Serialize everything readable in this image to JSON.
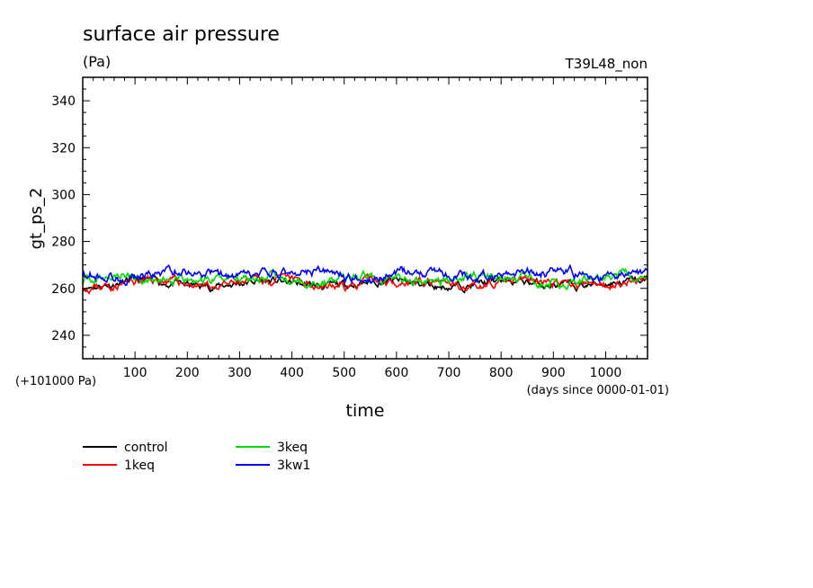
{
  "chart_data": {
    "type": "line",
    "title": "surface air pressure",
    "units": "(Pa)",
    "subtitle_right": "T39L48_non",
    "ylabel": "gt_ps_2",
    "xlabel": "time",
    "offset_label": "(+101000 Pa)",
    "x_units_label": "(days since 0000-01-01)",
    "xlim": [
      0,
      1080
    ],
    "ylim": [
      230,
      350
    ],
    "x_ticks": [
      100,
      200,
      300,
      400,
      500,
      600,
      700,
      800,
      900,
      1000
    ],
    "x_tick_labels": [
      "100",
      "200",
      "300",
      "400",
      "500",
      "600",
      "700",
      "800",
      "900",
      "1000"
    ],
    "y_ticks": [
      240,
      260,
      280,
      300,
      320,
      340
    ],
    "y_tick_labels": [
      "240",
      "260",
      "280",
      "300",
      "320",
      "340"
    ],
    "series": [
      {
        "name": "control",
        "color": "#000000",
        "mean": 262.0,
        "amp": 2.0,
        "seed": 11
      },
      {
        "name": "1keq",
        "color": "#ff0000",
        "mean": 262.2,
        "amp": 2.2,
        "seed": 23
      },
      {
        "name": "3keq",
        "color": "#00dd00",
        "mean": 264.0,
        "amp": 2.4,
        "seed": 37
      },
      {
        "name": "3kw1",
        "color": "#0000ff",
        "mean": 266.0,
        "amp": 2.6,
        "seed": 53
      }
    ]
  }
}
